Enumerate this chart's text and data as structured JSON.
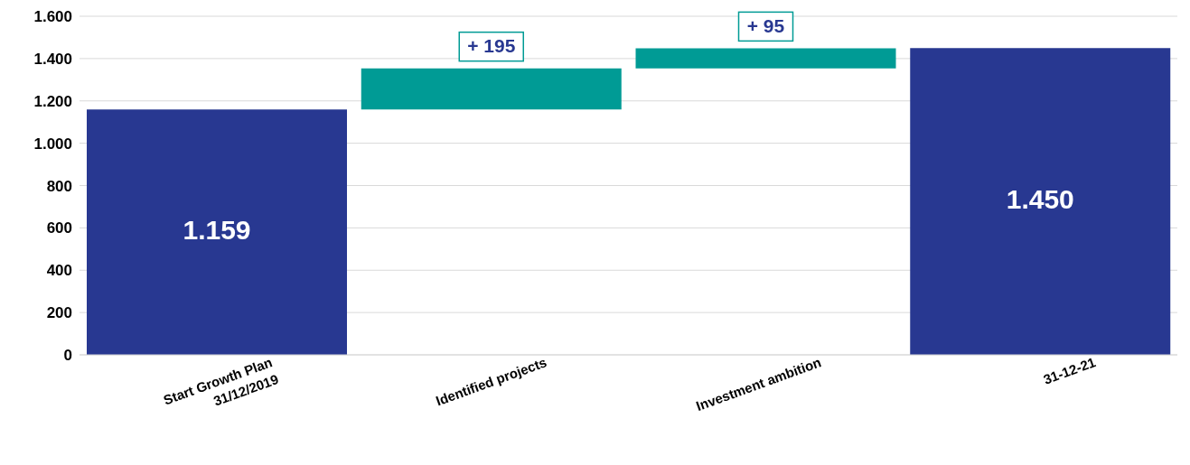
{
  "chart_data": {
    "type": "bar",
    "categories": [
      "Start Growth Plan\n31/12/2019",
      "Identified projects",
      "Investment ambition",
      "31-12-21"
    ],
    "values": [
      1159,
      195,
      95,
      1450
    ],
    "base": [
      0,
      1159,
      1354,
      0
    ],
    "colors": [
      "#283891",
      "#009b95",
      "#009b95",
      "#283891"
    ],
    "value_labels": [
      "1.159",
      "+ 195",
      "+ 95",
      "1.450"
    ],
    "ylim": [
      0,
      1600
    ],
    "yticks": [
      {
        "value": 0,
        "label": "0"
      },
      {
        "value": 200,
        "label": "200"
      },
      {
        "value": 400,
        "label": "400"
      },
      {
        "value": 600,
        "label": "600"
      },
      {
        "value": 800,
        "label": "800"
      },
      {
        "value": 1000,
        "label": "1.000"
      },
      {
        "value": 1200,
        "label": "1.200"
      },
      {
        "value": 1400,
        "label": "1.400"
      },
      {
        "value": 1600,
        "label": "1.600"
      }
    ],
    "grid": "y"
  }
}
